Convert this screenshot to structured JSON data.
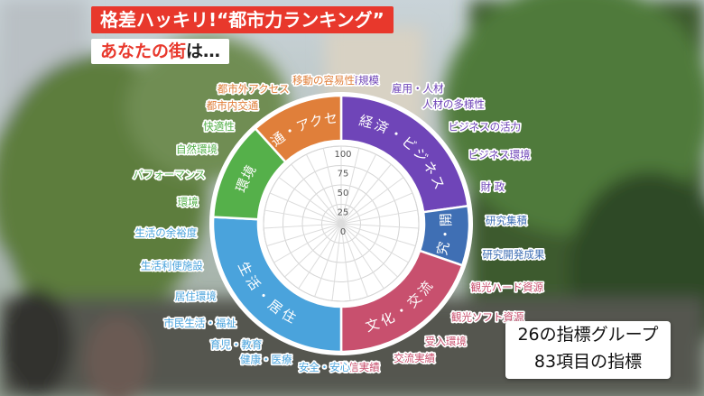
{
  "header": {
    "title": "格差ハッキリ!“都市力ランキング”",
    "subtitle_red": "あなたの街",
    "subtitle_dark": "は…"
  },
  "wheel": {
    "scale_labels": [
      "100",
      "75",
      "50",
      "25",
      "0"
    ],
    "groups": [
      {
        "name": "経済・ビジネス",
        "color": "#6f45b8",
        "start": 0,
        "end": 82
      },
      {
        "name": "研究・開発",
        "color": "#3f6fb4",
        "start": 82,
        "end": 109
      },
      {
        "name": "文化・交流",
        "color": "#c8506e",
        "start": 109,
        "end": 180
      },
      {
        "name": "生活・居住",
        "color": "#4aa3dc",
        "start": 180,
        "end": 273
      },
      {
        "name": "環境",
        "color": "#55b04a",
        "start": 273,
        "end": 318
      },
      {
        "name": "交通・アクセス",
        "color": "#e07f3a",
        "start": 318,
        "end": 360
      }
    ],
    "indicators": [
      {
        "label": "経済規模",
        "group": 0
      },
      {
        "label": "雇用・人材",
        "group": 0
      },
      {
        "label": "人材の多様性",
        "group": 0
      },
      {
        "label": "ビジネスの活力",
        "group": 0
      },
      {
        "label": "ビジネス環境",
        "group": 0
      },
      {
        "label": "財 政",
        "group": 0
      },
      {
        "label": "研究集積",
        "group": 1
      },
      {
        "label": "研究開発成果",
        "group": 1
      },
      {
        "label": "観光ハード資源",
        "group": 2
      },
      {
        "label": "観光ソフト資源",
        "group": 2
      },
      {
        "label": "受入環境",
        "group": 2
      },
      {
        "label": "交流実績",
        "group": 2
      },
      {
        "label": "発信実績",
        "group": 2
      },
      {
        "label": "安全・安心",
        "group": 3
      },
      {
        "label": "健康・医療",
        "group": 3
      },
      {
        "label": "育児・教育",
        "group": 3
      },
      {
        "label": "市民生活・福祉",
        "group": 3
      },
      {
        "label": "居住環境",
        "group": 3
      },
      {
        "label": "生活利便施設",
        "group": 3
      },
      {
        "label": "生活の余裕度",
        "group": 3
      },
      {
        "label": "環境",
        "group": 4
      },
      {
        "label": "パフォーマンス",
        "group": 4
      },
      {
        "label": "自然環境",
        "group": 4
      },
      {
        "label": "快適性",
        "group": 4
      },
      {
        "label": "都市内交通",
        "group": 5
      },
      {
        "label": "都市外アクセス",
        "group": 5
      },
      {
        "label": "移動の容易性",
        "group": 5
      }
    ]
  },
  "info": {
    "line1": "26の指標グループ",
    "line2": "83項目の指標"
  }
}
